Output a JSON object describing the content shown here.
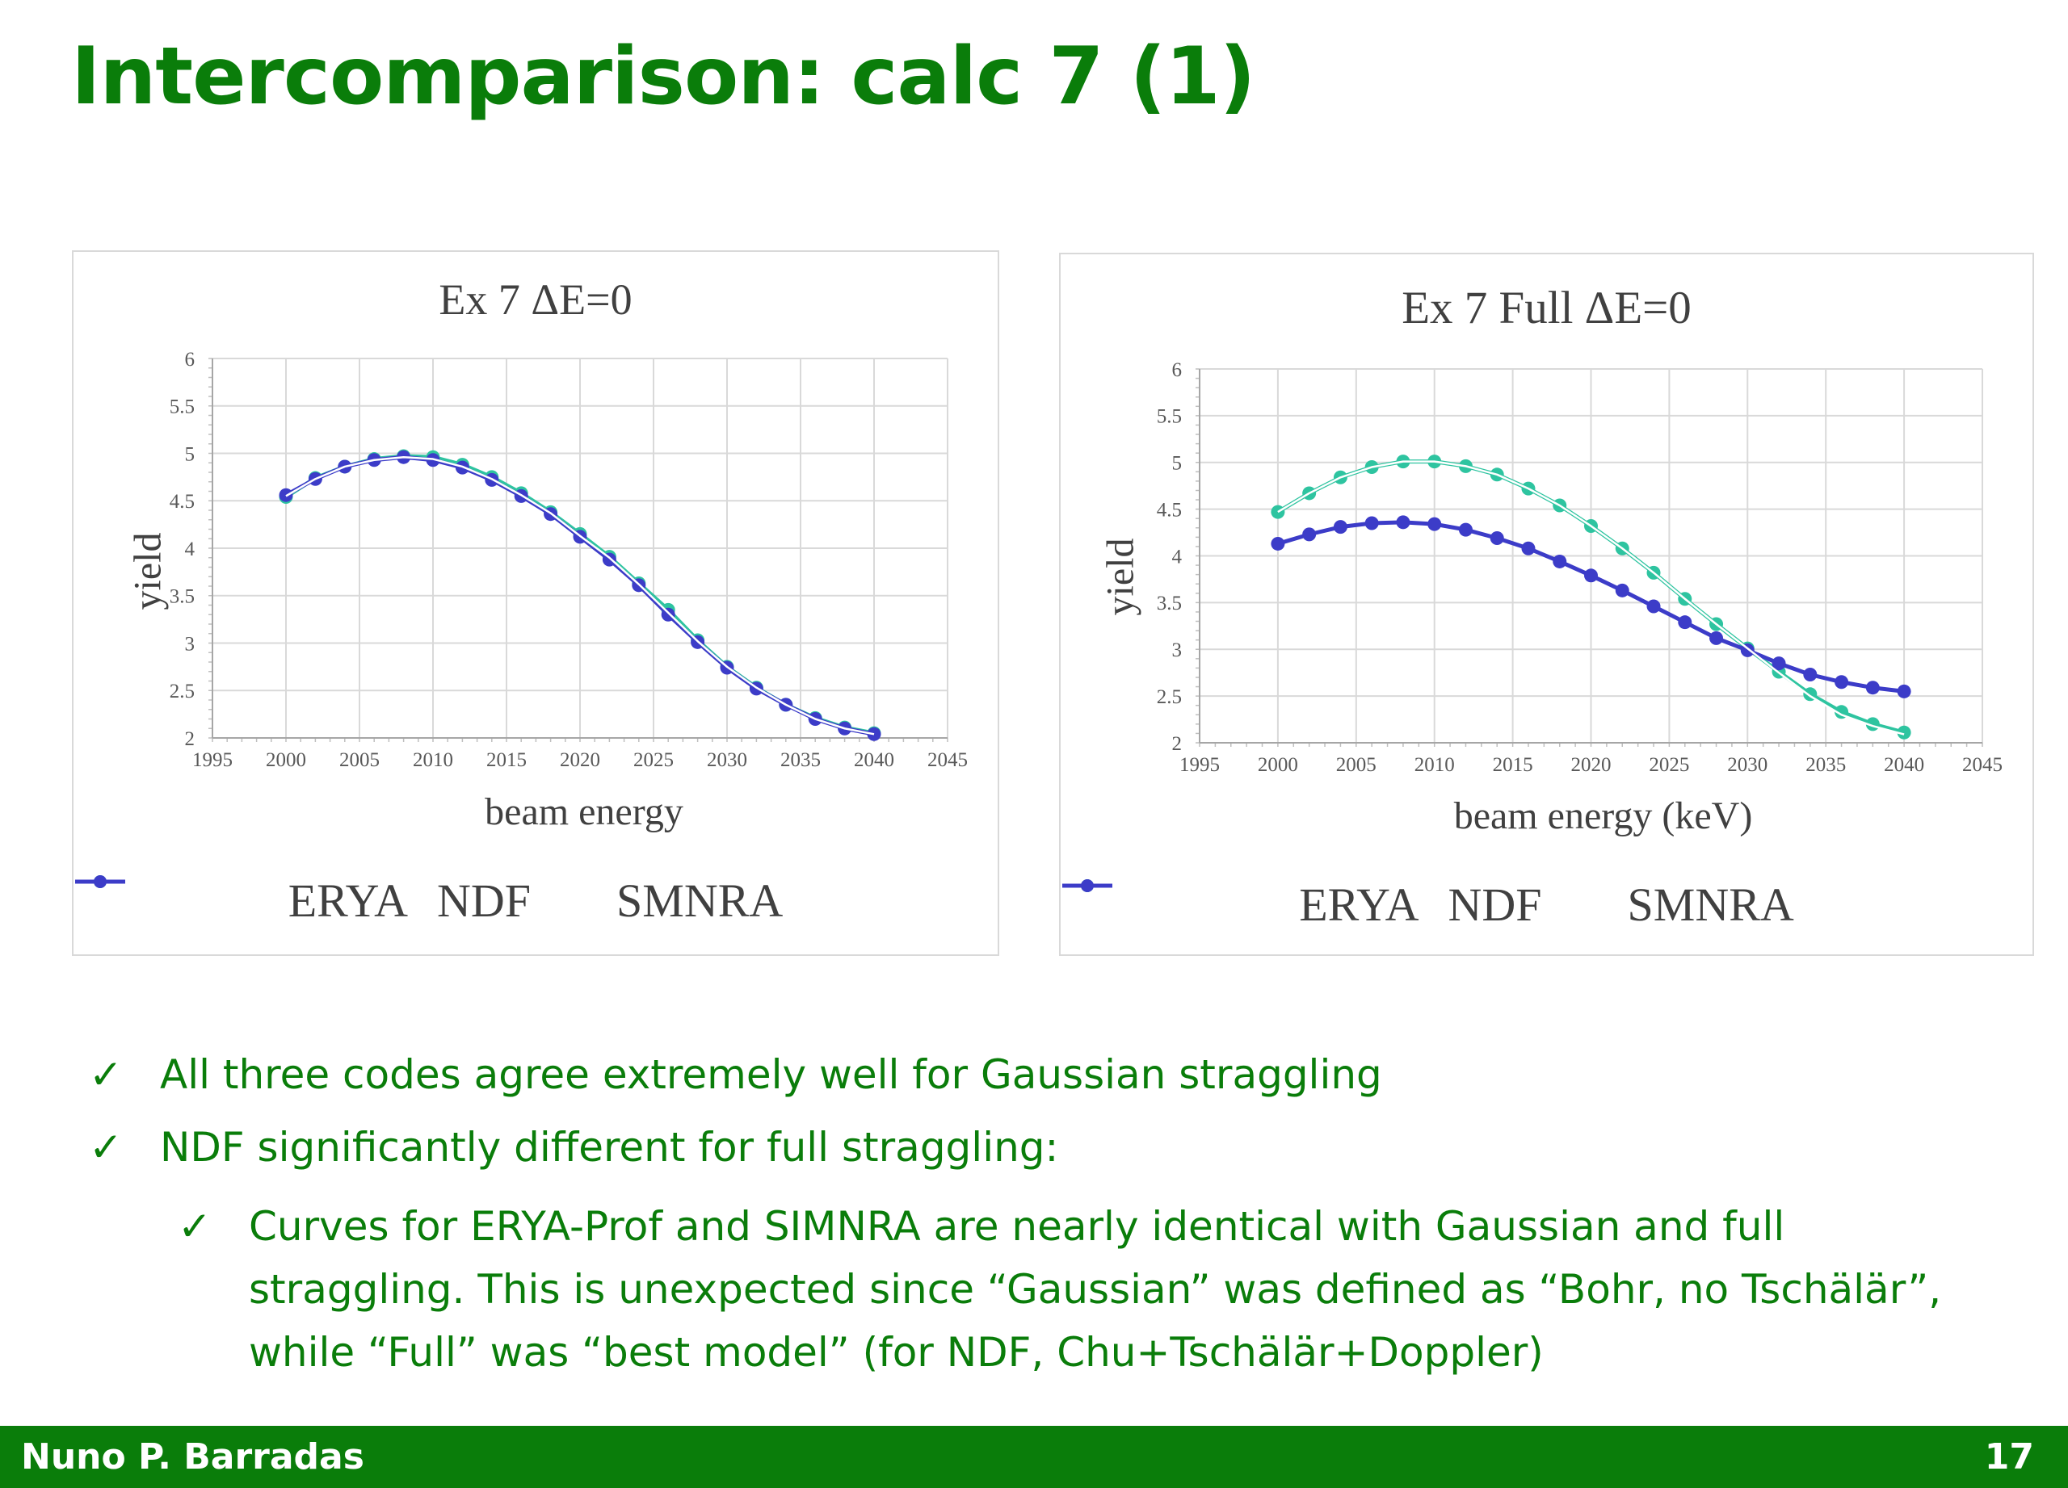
{
  "slide": {
    "title": "Intercomparison: calc 7 (1)"
  },
  "chart_data": [
    {
      "type": "line",
      "title": "Ex 7 ΔE=0",
      "xlabel": "beam energy",
      "ylabel": "yield",
      "xlim": [
        1995,
        2045
      ],
      "ylim": [
        2,
        6
      ],
      "xticks": [
        1995,
        2000,
        2005,
        2010,
        2015,
        2020,
        2025,
        2030,
        2035,
        2040,
        2045
      ],
      "yticks": [
        2,
        2.5,
        3,
        3.5,
        4,
        4.5,
        5,
        5.5,
        6
      ],
      "grid": true,
      "legend": "bottom",
      "x": [
        2000,
        2002,
        2004,
        2006,
        2008,
        2010,
        2012,
        2014,
        2016,
        2018,
        2020,
        2022,
        2024,
        2026,
        2028,
        2030,
        2032,
        2034,
        2036,
        2038,
        2040
      ],
      "series": [
        {
          "name": "ERYA",
          "color": "#2ec4a0",
          "markers": true,
          "values": [
            4.54,
            4.74,
            4.86,
            4.94,
            4.97,
            4.96,
            4.88,
            4.75,
            4.58,
            4.38,
            4.15,
            3.91,
            3.63,
            3.35,
            3.03,
            2.75,
            2.53,
            2.35,
            2.21,
            2.11,
            2.05
          ]
        },
        {
          "name": "NDF",
          "color": "#3c3cc8",
          "markers": true,
          "values": [
            4.56,
            4.73,
            4.86,
            4.93,
            4.96,
            4.93,
            4.85,
            4.72,
            4.55,
            4.36,
            4.12,
            3.88,
            3.61,
            3.3,
            3.01,
            2.74,
            2.52,
            2.35,
            2.2,
            2.1,
            2.04
          ]
        },
        {
          "name": "SMNRA",
          "color": "#ffffff",
          "markers": false,
          "values": [
            4.55,
            4.73,
            4.86,
            4.93,
            4.96,
            4.94,
            4.86,
            4.73,
            4.56,
            4.37,
            4.13,
            3.9,
            3.62,
            3.32,
            3.02,
            2.75,
            2.53,
            2.35,
            2.2,
            2.1,
            2.04
          ]
        }
      ]
    },
    {
      "type": "line",
      "title": "Ex 7 Full ΔE=0",
      "xlabel": "beam energy (keV)",
      "ylabel": "yield",
      "xlim": [
        1995,
        2045
      ],
      "ylim": [
        2,
        6
      ],
      "xticks": [
        1995,
        2000,
        2005,
        2010,
        2015,
        2020,
        2025,
        2030,
        2035,
        2040,
        2045
      ],
      "yticks": [
        2,
        2.5,
        3,
        3.5,
        4,
        4.5,
        5,
        5.5,
        6
      ],
      "grid": true,
      "legend": "bottom",
      "x": [
        2000,
        2002,
        2004,
        2006,
        2008,
        2010,
        2012,
        2014,
        2016,
        2018,
        2020,
        2022,
        2024,
        2026,
        2028,
        2030,
        2032,
        2034,
        2036,
        2038,
        2040
      ],
      "series": [
        {
          "name": "ERYA",
          "color": "#2ec4a0",
          "markers": true,
          "values": [
            4.47,
            4.67,
            4.84,
            4.95,
            5.01,
            5.01,
            4.96,
            4.87,
            4.72,
            4.54,
            4.32,
            4.08,
            3.82,
            3.54,
            3.27,
            3.01,
            2.76,
            2.52,
            2.33,
            2.2,
            2.11
          ]
        },
        {
          "name": "NDF",
          "color": "#3c3cc8",
          "markers": true,
          "values": [
            4.13,
            4.23,
            4.31,
            4.35,
            4.36,
            4.34,
            4.28,
            4.19,
            4.08,
            3.94,
            3.79,
            3.63,
            3.46,
            3.29,
            3.12,
            2.99,
            2.85,
            2.73,
            2.65,
            2.59,
            2.55
          ]
        },
        {
          "name": "SMNRA",
          "color": "#ffffff",
          "markers": false,
          "values": [
            4.47,
            4.67,
            4.84,
            4.95,
            5.01,
            5.01,
            4.96,
            4.87,
            4.72,
            4.54,
            4.32,
            4.08,
            3.82,
            3.54,
            3.27,
            3.01,
            2.75,
            2.5,
            2.3,
            2.18,
            2.09
          ]
        }
      ]
    }
  ],
  "bullets": {
    "check_glyph": "✓",
    "items": [
      "All three codes agree extremely well for Gaussian straggling",
      "NDF significantly different for full straggling:"
    ],
    "subitems": [
      "Curves for ERYA-Prof and SIMNRA are nearly identical with Gaussian and full straggling. This is unexpected since  “Gaussian” was defined as “Bohr, no Tschälär”, while “Full” was “best model” (for NDF, Chu+Tschälär+Doppler)"
    ]
  },
  "footer": {
    "author": "Nuno P. Barradas",
    "page": "17",
    "color": "#0a7d0a"
  }
}
